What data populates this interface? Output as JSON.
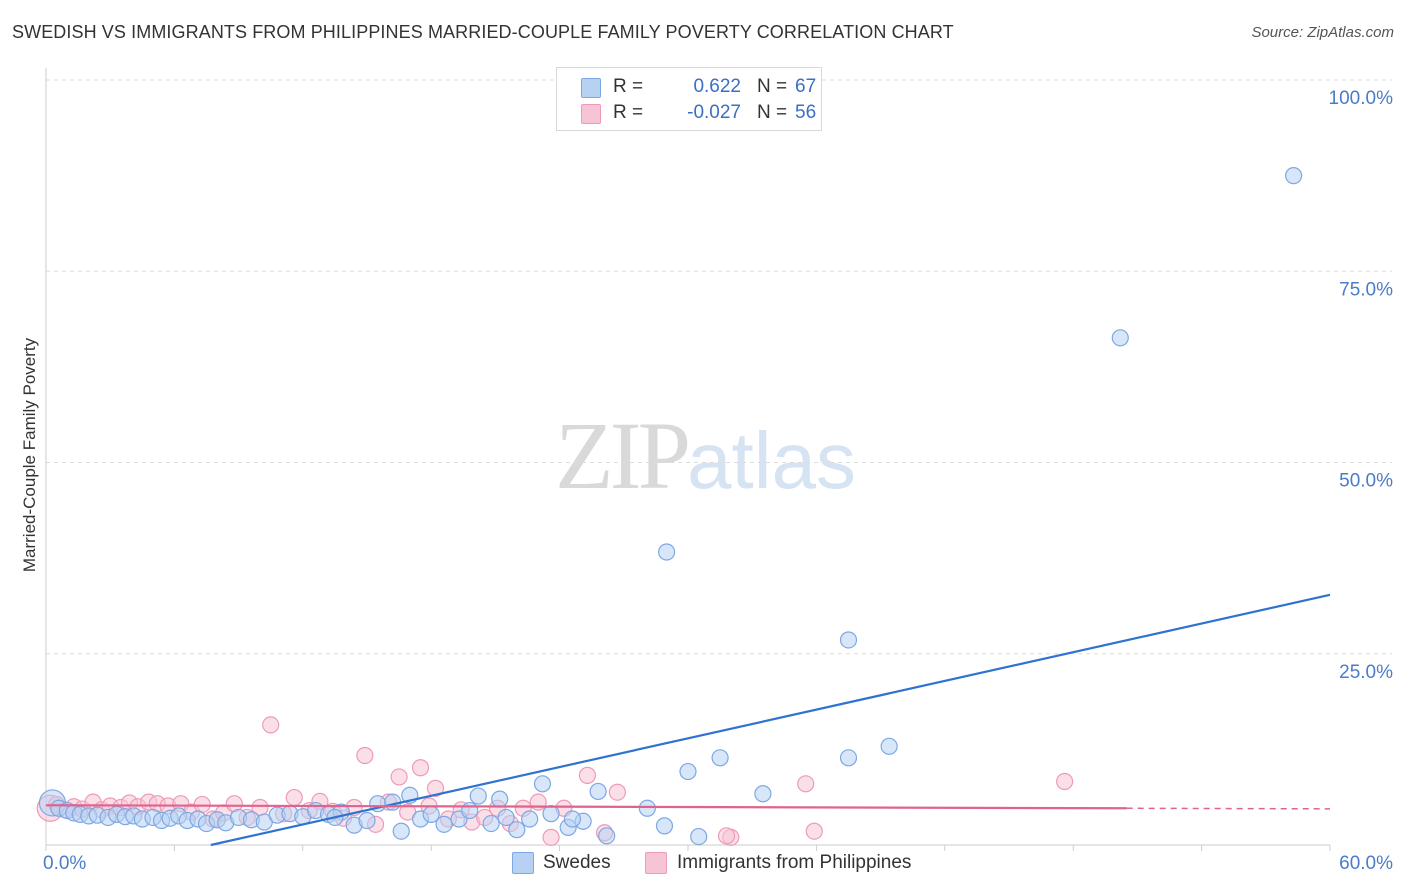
{
  "title": "SWEDISH VS IMMIGRANTS FROM PHILIPPINES MARRIED-COUPLE FAMILY POVERTY CORRELATION CHART",
  "source": "Source: ZipAtlas.com",
  "watermark": {
    "part1": "ZIP",
    "part2": "atlas"
  },
  "legend": {
    "r_label": "R =",
    "n_label": "N =",
    "series": [
      {
        "name": "Swedes",
        "r": "0.622",
        "n": "67"
      },
      {
        "name": "Immigrants from Philippines",
        "r": "-0.027",
        "n": "56"
      }
    ]
  },
  "colors": {
    "swedes_fill": "#b7d1f3",
    "swedes_stroke": "#7ea8e3",
    "swedes_line": "#2f73d1",
    "phil_fill": "#f7c4d6",
    "phil_stroke": "#ee9ab8",
    "phil_line": "#e0638d",
    "tick": "#4a7cc9",
    "grid": "#dddddd"
  },
  "chart_data": {
    "type": "scatter",
    "title": "SWEDISH VS IMMIGRANTS FROM PHILIPPINES MARRIED-COUPLE FAMILY POVERTY CORRELATION CHART",
    "xlabel": "",
    "ylabel": "Married-Couple Family Poverty",
    "xlim": [
      0,
      60
    ],
    "ylim": [
      0,
      100
    ],
    "x_tick_labels": [
      "0.0%",
      "60.0%"
    ],
    "y_ticks": [
      25,
      50,
      75,
      100
    ],
    "y_tick_labels": [
      "25.0%",
      "50.0%",
      "75.0%",
      "100.0%"
    ],
    "legend_position": "top-center",
    "series": [
      {
        "name": "Swedes",
        "trend": {
          "x": [
            7.7,
            60
          ],
          "y": [
            0,
            32.7
          ]
        },
        "points": [
          {
            "x": 0.3,
            "y": 5.5,
            "big": true
          },
          {
            "x": 0.6,
            "y": 4.8
          },
          {
            "x": 1.0,
            "y": 4.5
          },
          {
            "x": 1.3,
            "y": 4.2
          },
          {
            "x": 1.6,
            "y": 4.0
          },
          {
            "x": 2.0,
            "y": 3.8
          },
          {
            "x": 2.4,
            "y": 3.9
          },
          {
            "x": 2.9,
            "y": 3.6
          },
          {
            "x": 3.3,
            "y": 4.0
          },
          {
            "x": 3.7,
            "y": 3.7
          },
          {
            "x": 4.1,
            "y": 3.8
          },
          {
            "x": 4.5,
            "y": 3.4
          },
          {
            "x": 5.0,
            "y": 3.6
          },
          {
            "x": 5.4,
            "y": 3.2
          },
          {
            "x": 5.8,
            "y": 3.5
          },
          {
            "x": 6.2,
            "y": 3.8
          },
          {
            "x": 6.6,
            "y": 3.2
          },
          {
            "x": 7.1,
            "y": 3.4
          },
          {
            "x": 7.5,
            "y": 2.8
          },
          {
            "x": 8.0,
            "y": 3.3
          },
          {
            "x": 8.4,
            "y": 2.9
          },
          {
            "x": 9.0,
            "y": 3.6
          },
          {
            "x": 9.6,
            "y": 3.3
          },
          {
            "x": 10.2,
            "y": 3.0
          },
          {
            "x": 10.8,
            "y": 3.9
          },
          {
            "x": 11.4,
            "y": 4.1
          },
          {
            "x": 12.0,
            "y": 3.7
          },
          {
            "x": 12.6,
            "y": 4.5
          },
          {
            "x": 13.2,
            "y": 4.0
          },
          {
            "x": 13.8,
            "y": 4.3
          },
          {
            "x": 14.4,
            "y": 2.6
          },
          {
            "x": 15.0,
            "y": 3.2
          },
          {
            "x": 15.5,
            "y": 5.4
          },
          {
            "x": 16.2,
            "y": 5.6
          },
          {
            "x": 16.6,
            "y": 1.8
          },
          {
            "x": 17.0,
            "y": 6.5
          },
          {
            "x": 17.5,
            "y": 3.4
          },
          {
            "x": 18.0,
            "y": 4.0
          },
          {
            "x": 18.6,
            "y": 2.7
          },
          {
            "x": 19.3,
            "y": 3.4
          },
          {
            "x": 19.8,
            "y": 4.5
          },
          {
            "x": 20.2,
            "y": 6.4
          },
          {
            "x": 20.8,
            "y": 2.8
          },
          {
            "x": 21.5,
            "y": 3.6
          },
          {
            "x": 22.0,
            "y": 2.0
          },
          {
            "x": 22.6,
            "y": 3.4
          },
          {
            "x": 23.2,
            "y": 8.0
          },
          {
            "x": 23.6,
            "y": 4.1
          },
          {
            "x": 24.4,
            "y": 2.3
          },
          {
            "x": 25.1,
            "y": 3.1
          },
          {
            "x": 25.8,
            "y": 7.0
          },
          {
            "x": 26.2,
            "y": 1.2
          },
          {
            "x": 28.1,
            "y": 4.8
          },
          {
            "x": 30.0,
            "y": 9.6
          },
          {
            "x": 30.5,
            "y": 1.1
          },
          {
            "x": 31.5,
            "y": 11.4
          },
          {
            "x": 33.5,
            "y": 6.7
          },
          {
            "x": 37.5,
            "y": 11.4
          },
          {
            "x": 39.4,
            "y": 12.9
          },
          {
            "x": 28.9,
            "y": 2.5
          },
          {
            "x": 24.6,
            "y": 3.4
          },
          {
            "x": 21.2,
            "y": 6.0
          },
          {
            "x": 13.5,
            "y": 3.6
          },
          {
            "x": 29.0,
            "y": 38.3
          },
          {
            "x": 37.5,
            "y": 26.8
          },
          {
            "x": 50.2,
            "y": 66.3
          },
          {
            "x": 58.3,
            "y": 87.5
          }
        ]
      },
      {
        "name": "Immigrants from Philippines",
        "trend": {
          "x": [
            0,
            50.5
          ],
          "y": [
            5.2,
            4.8
          ],
          "dash_to": 60
        },
        "points": [
          {
            "x": 0.2,
            "y": 4.8,
            "big": true
          },
          {
            "x": 0.5,
            "y": 5.3
          },
          {
            "x": 0.9,
            "y": 4.6
          },
          {
            "x": 1.3,
            "y": 5.0
          },
          {
            "x": 1.7,
            "y": 4.7
          },
          {
            "x": 2.2,
            "y": 5.6
          },
          {
            "x": 2.6,
            "y": 4.6
          },
          {
            "x": 3.0,
            "y": 5.1
          },
          {
            "x": 3.5,
            "y": 4.9
          },
          {
            "x": 3.9,
            "y": 5.5
          },
          {
            "x": 4.3,
            "y": 5.0
          },
          {
            "x": 4.8,
            "y": 5.6
          },
          {
            "x": 5.2,
            "y": 5.4
          },
          {
            "x": 5.7,
            "y": 5.1
          },
          {
            "x": 6.3,
            "y": 5.4
          },
          {
            "x": 6.8,
            "y": 4.3
          },
          {
            "x": 7.3,
            "y": 5.3
          },
          {
            "x": 7.8,
            "y": 3.4
          },
          {
            "x": 8.3,
            "y": 4.2
          },
          {
            "x": 8.8,
            "y": 5.4
          },
          {
            "x": 9.4,
            "y": 3.6
          },
          {
            "x": 10.0,
            "y": 4.9
          },
          {
            "x": 10.5,
            "y": 15.7
          },
          {
            "x": 11.1,
            "y": 4.1
          },
          {
            "x": 11.6,
            "y": 6.2
          },
          {
            "x": 12.3,
            "y": 4.5
          },
          {
            "x": 12.8,
            "y": 5.7
          },
          {
            "x": 13.4,
            "y": 4.4
          },
          {
            "x": 13.9,
            "y": 3.5
          },
          {
            "x": 14.4,
            "y": 4.9
          },
          {
            "x": 14.9,
            "y": 11.7
          },
          {
            "x": 15.4,
            "y": 2.7
          },
          {
            "x": 16.0,
            "y": 5.6
          },
          {
            "x": 16.5,
            "y": 8.9
          },
          {
            "x": 16.9,
            "y": 4.3
          },
          {
            "x": 17.5,
            "y": 10.1
          },
          {
            "x": 17.9,
            "y": 5.1
          },
          {
            "x": 18.2,
            "y": 7.4
          },
          {
            "x": 18.8,
            "y": 3.4
          },
          {
            "x": 19.4,
            "y": 4.6
          },
          {
            "x": 19.9,
            "y": 3.0
          },
          {
            "x": 20.5,
            "y": 3.6
          },
          {
            "x": 21.1,
            "y": 4.8
          },
          {
            "x": 21.7,
            "y": 2.8
          },
          {
            "x": 22.3,
            "y": 4.8
          },
          {
            "x": 23.0,
            "y": 5.6
          },
          {
            "x": 23.6,
            "y": 1.0
          },
          {
            "x": 24.2,
            "y": 4.8
          },
          {
            "x": 25.3,
            "y": 9.1
          },
          {
            "x": 26.1,
            "y": 1.6
          },
          {
            "x": 26.7,
            "y": 6.9
          },
          {
            "x": 32.0,
            "y": 1.0
          },
          {
            "x": 35.5,
            "y": 8.0
          },
          {
            "x": 35.9,
            "y": 1.8
          },
          {
            "x": 31.8,
            "y": 1.2
          },
          {
            "x": 47.6,
            "y": 8.3
          }
        ]
      }
    ]
  }
}
